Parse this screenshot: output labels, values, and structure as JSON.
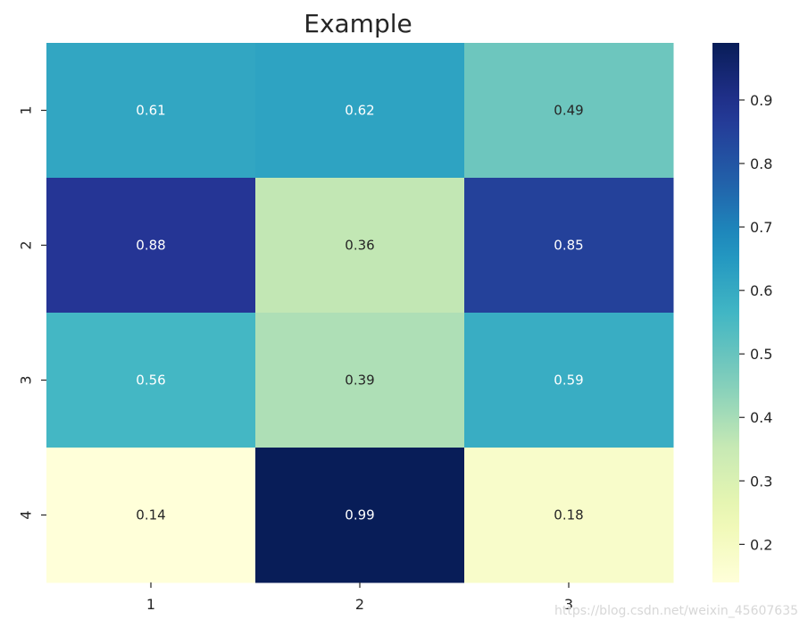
{
  "chart_data": {
    "type": "heatmap",
    "title": "Example",
    "x_categories": [
      "1",
      "2",
      "3"
    ],
    "y_categories": [
      "1",
      "2",
      "3",
      "4"
    ],
    "values": [
      [
        0.61,
        0.62,
        0.49
      ],
      [
        0.88,
        0.36,
        0.85
      ],
      [
        0.56,
        0.39,
        0.59
      ],
      [
        0.14,
        0.99,
        0.18
      ]
    ],
    "colormap": "YlGnBu",
    "colorbar": {
      "range": [
        0.14,
        0.99
      ],
      "ticks": [
        0.2,
        0.3,
        0.4,
        0.5,
        0.6,
        0.7,
        0.8,
        0.9
      ],
      "tick_labels": [
        "0.2",
        "0.3",
        "0.4",
        "0.5",
        "0.6",
        "0.7",
        "0.8",
        "0.9"
      ]
    },
    "annotation_colors": {
      "dark_text": "#262626",
      "light_text": "#ffffff"
    }
  },
  "watermark": "https://blog.csdn.net/weixin_45607635"
}
